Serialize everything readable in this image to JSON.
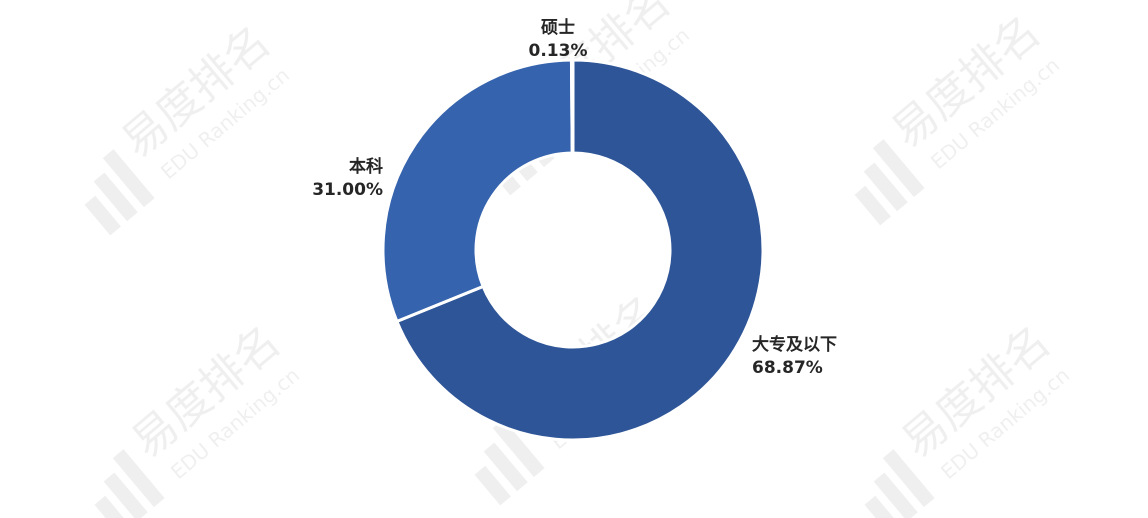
{
  "watermark": {
    "brand": "易度排名",
    "site": "EDU Ranking.cn"
  },
  "chart_data": {
    "type": "pie",
    "donut": true,
    "title": "",
    "slices": [
      {
        "label": "大专及以下",
        "value": 68.87,
        "display": "68.87%",
        "color": "#2e5597"
      },
      {
        "label": "本科",
        "value": 31.0,
        "display": "31.00%",
        "color": "#3563ad"
      },
      {
        "label": "硕士",
        "value": 0.13,
        "display": "0.13%",
        "color": "#3a66b0"
      }
    ],
    "start_angle": "12 o'clock",
    "direction": "clockwise",
    "legend": "none (direct labels)"
  }
}
